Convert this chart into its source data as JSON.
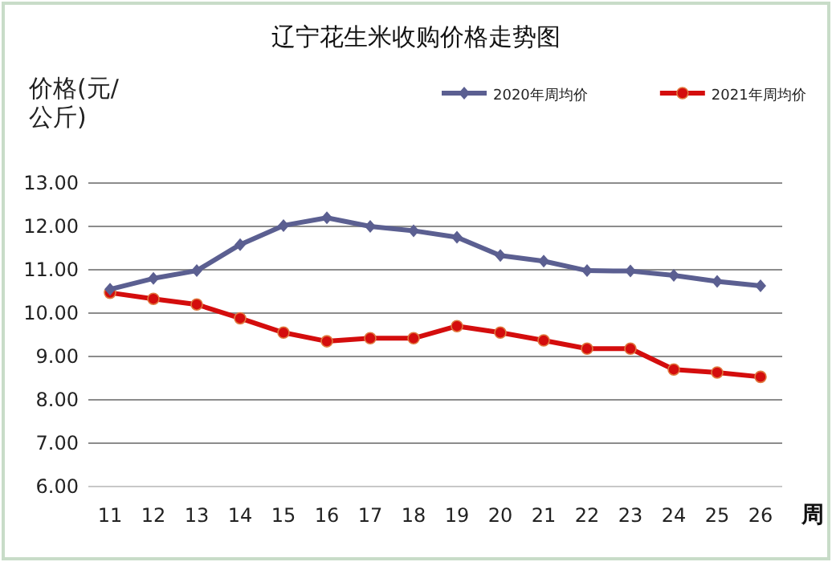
{
  "chart_data": {
    "type": "line",
    "title": "辽宁花生米收购价格走势图",
    "ylabel": "价格(元/公斤)",
    "xlabel": "周",
    "categories": [
      "11",
      "12",
      "13",
      "14",
      "15",
      "16",
      "17",
      "18",
      "19",
      "20",
      "21",
      "22",
      "23",
      "24",
      "25",
      "26"
    ],
    "series": [
      {
        "name": "2020年周均价",
        "color": "#5b5f91",
        "marker": "diamond",
        "values": [
          10.55,
          10.8,
          10.98,
          11.58,
          12.02,
          12.2,
          12.0,
          11.9,
          11.75,
          11.33,
          11.2,
          10.98,
          10.97,
          10.87,
          10.73,
          10.63
        ]
      },
      {
        "name": "2021年周均价",
        "color": "#d40d0d",
        "marker": "circle",
        "values": [
          10.47,
          10.33,
          10.2,
          9.88,
          9.55,
          9.35,
          9.42,
          9.42,
          9.7,
          9.55,
          9.37,
          9.18,
          9.18,
          8.7,
          8.63,
          8.53
        ]
      }
    ],
    "ylim": [
      6,
      13
    ],
    "yticks": [
      {
        "value": 6,
        "label": "6.00"
      },
      {
        "value": 7,
        "label": "7.00"
      },
      {
        "value": 8,
        "label": "8.00"
      },
      {
        "value": 9,
        "label": "9.00"
      },
      {
        "value": 10,
        "label": "10.00"
      },
      {
        "value": 11,
        "label": "11.00"
      },
      {
        "value": 12,
        "label": "12.00"
      },
      {
        "value": 13,
        "label": "13.00"
      }
    ],
    "grid": "y",
    "legend": "top right",
    "line_style": "solid"
  }
}
